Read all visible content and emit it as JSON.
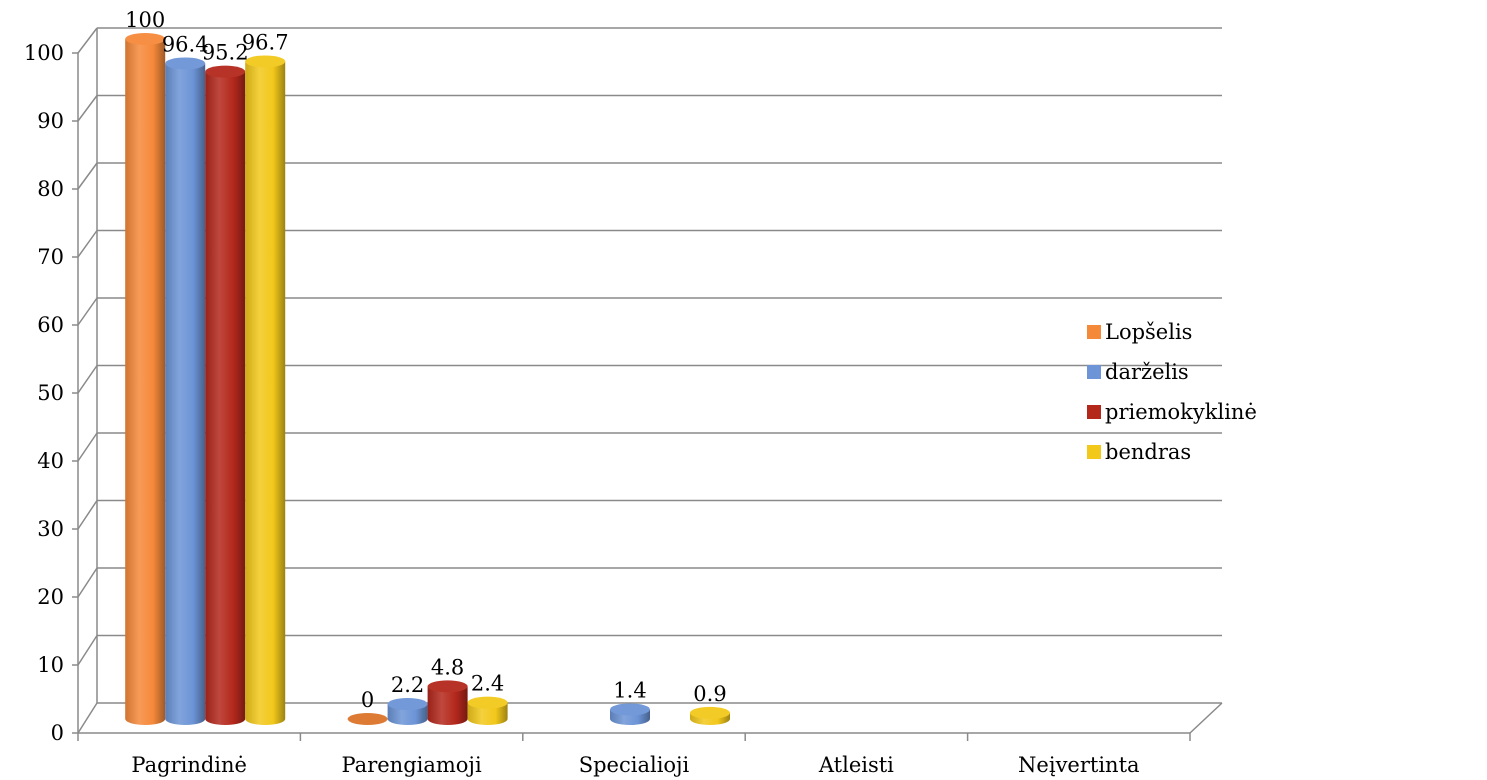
{
  "chart_data": {
    "type": "bar",
    "categories": [
      "Pagrindinė",
      "Parengiamoji",
      "Specialioji",
      "Atleisti",
      "Neįvertinta"
    ],
    "series": [
      {
        "name": "Lopšelis",
        "color": "#f5893a",
        "values": [
          100,
          0,
          null,
          null,
          null
        ]
      },
      {
        "name": "darželis",
        "color": "#6c94d6",
        "values": [
          96.4,
          2.2,
          1.4,
          null,
          null
        ]
      },
      {
        "name": "priemokyklinė",
        "color": "#b4281c",
        "values": [
          95.2,
          4.8,
          null,
          null,
          null
        ]
      },
      {
        "name": "bendras",
        "color": "#f2c81b",
        "values": [
          96.7,
          2.4,
          0.9,
          null,
          null
        ]
      }
    ],
    "data_labels": [
      [
        "100",
        "0",
        "",
        "",
        ""
      ],
      [
        "96.4",
        "2.2",
        "1.4",
        "",
        ""
      ],
      [
        "95.2",
        "4.8",
        "",
        "",
        ""
      ],
      [
        "96.7",
        "2.4",
        "0.9",
        "",
        ""
      ]
    ],
    "ylim": [
      0,
      100
    ],
    "yticks": [
      "0",
      "10",
      "20",
      "30",
      "40",
      "50",
      "60",
      "70",
      "80",
      "90",
      "100"
    ],
    "grid": true,
    "legend_position": "right",
    "style": "3d-cylinder"
  }
}
